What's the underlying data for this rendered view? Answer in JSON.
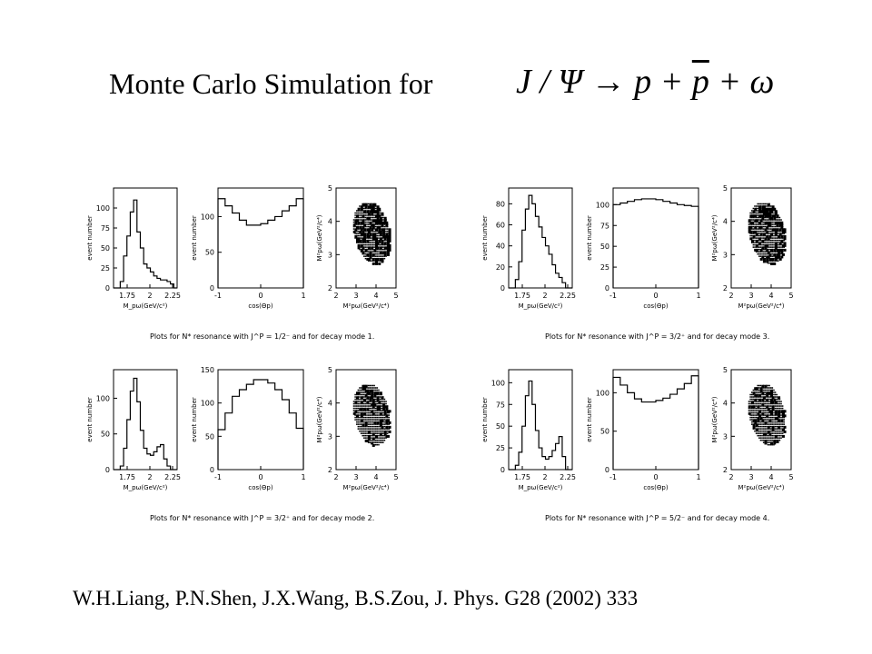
{
  "title": "Monte Carlo Simulation for",
  "formula": {
    "lhs": "J / Ψ",
    "arrow": "→",
    "rhs1": "p",
    "plus1": " + ",
    "rhs2": "p",
    "plus2": " + ",
    "rhs3": "ω"
  },
  "citation": "W.H.Liang, P.N.Shen, J.X.Wang, B.S.Zou, J. Phys. G28  (2002) 333",
  "figures": [
    {
      "id": "mode1",
      "caption": "Plots for N* resonance with J^P = 1/2⁻ and for decay mode 1.",
      "panels": [
        {
          "type": "histogram",
          "ylabel": "event number",
          "xlabel": "M_pω(GeV/c²)",
          "xticks": [
            "1.75",
            "2",
            "2.25"
          ],
          "xrange": [
            1.6,
            2.3
          ],
          "yticks": [
            "0",
            "25",
            "50",
            "75",
            "100"
          ],
          "yrange": [
            0,
            125
          ],
          "values": [
            0,
            0,
            8,
            40,
            65,
            95,
            110,
            70,
            50,
            30,
            25,
            20,
            15,
            12,
            10,
            10,
            8,
            5,
            0
          ]
        },
        {
          "type": "histogram",
          "ylabel": "event number",
          "xlabel": "cos(Θp)",
          "xticks": [
            "-1",
            "0",
            "1"
          ],
          "xrange": [
            -1,
            1
          ],
          "yticks": [
            "0",
            "50",
            "100"
          ],
          "yrange": [
            0,
            140
          ],
          "values": [
            125,
            115,
            105,
            95,
            88,
            88,
            90,
            95,
            100,
            108,
            115,
            125
          ]
        },
        {
          "type": "scatter",
          "ylabel": "M²pω(GeV²/c⁴)",
          "xlabel": "M²pω(GeV²/c⁴)",
          "xticks": [
            "2",
            "3",
            "4",
            "5"
          ],
          "yticks": [
            "2",
            "3",
            "4",
            "5"
          ],
          "pattern": "mode1"
        }
      ]
    },
    {
      "id": "mode3",
      "caption": "Plots for N* resonance with J^P = 3/2⁺ and for decay mode 3.",
      "panels": [
        {
          "type": "histogram",
          "ylabel": "event number",
          "xlabel": "M_pω(GeV/c²)",
          "xticks": [
            "1.75",
            "2",
            "2.25"
          ],
          "xrange": [
            1.6,
            2.3
          ],
          "yticks": [
            "0",
            "20",
            "40",
            "60",
            "80"
          ],
          "yrange": [
            0,
            95
          ],
          "values": [
            0,
            0,
            8,
            25,
            55,
            75,
            88,
            80,
            68,
            58,
            48,
            40,
            32,
            22,
            14,
            10,
            5,
            0,
            0
          ]
        },
        {
          "type": "histogram",
          "ylabel": "event number",
          "xlabel": "cos(Θp)",
          "xticks": [
            "-1",
            "0",
            "1"
          ],
          "xrange": [
            -1,
            1
          ],
          "yticks": [
            "0",
            "25",
            "50",
            "75",
            "100"
          ],
          "yrange": [
            0,
            120
          ],
          "values": [
            100,
            102,
            104,
            106,
            107,
            107,
            106,
            104,
            102,
            100,
            99,
            98
          ]
        },
        {
          "type": "scatter",
          "ylabel": "M²pω(GeV²/c⁴)",
          "xlabel": "M²pω(GeV²/c⁴)",
          "xticks": [
            "2",
            "3",
            "4",
            "5"
          ],
          "yticks": [
            "2",
            "3",
            "4",
            "5"
          ],
          "pattern": "mode3"
        }
      ]
    },
    {
      "id": "mode2",
      "caption": "Plots for N* resonance with J^P = 3/2⁺ and for decay mode 2.",
      "panels": [
        {
          "type": "histogram",
          "ylabel": "event number",
          "xlabel": "M_pω(GeV/c²)",
          "xticks": [
            "1.75",
            "2",
            "2.25"
          ],
          "xrange": [
            1.6,
            2.3
          ],
          "yticks": [
            "0",
            "50",
            "100"
          ],
          "yrange": [
            0,
            140
          ],
          "values": [
            0,
            0,
            5,
            30,
            70,
            110,
            128,
            95,
            55,
            30,
            22,
            20,
            25,
            32,
            35,
            15,
            5,
            0,
            0
          ]
        },
        {
          "type": "histogram",
          "ylabel": "event number",
          "xlabel": "cos(Θp)",
          "xticks": [
            "-1",
            "0",
            "1"
          ],
          "xrange": [
            -1,
            1
          ],
          "yticks": [
            "0",
            "50",
            "100",
            "150"
          ],
          "yrange": [
            0,
            150
          ],
          "values": [
            60,
            85,
            110,
            120,
            128,
            135,
            135,
            130,
            120,
            105,
            85,
            62
          ]
        },
        {
          "type": "scatter",
          "ylabel": "M²pω(GeV²/c⁴)",
          "xlabel": "M²pω(GeV²/c⁴)",
          "xticks": [
            "2",
            "3",
            "4",
            "5"
          ],
          "yticks": [
            "2",
            "3",
            "4",
            "5"
          ],
          "pattern": "mode2"
        }
      ]
    },
    {
      "id": "mode4",
      "caption": "Plots for N* resonance with J^P = 5/2⁻ and for decay mode 4.",
      "panels": [
        {
          "type": "histogram",
          "ylabel": "event number",
          "xlabel": "M_pω(GeV/c²)",
          "xticks": [
            "1.75",
            "2",
            "2.25"
          ],
          "xrange": [
            1.6,
            2.3
          ],
          "yticks": [
            "0",
            "25",
            "50",
            "75",
            "100"
          ],
          "yrange": [
            0,
            115
          ],
          "values": [
            0,
            0,
            5,
            20,
            50,
            85,
            102,
            75,
            45,
            25,
            15,
            12,
            15,
            22,
            30,
            38,
            15,
            0,
            0
          ]
        },
        {
          "type": "histogram",
          "ylabel": "event number",
          "xlabel": "cos(Θp)",
          "xticks": [
            "-1",
            "0",
            "1"
          ],
          "xrange": [
            -1,
            1
          ],
          "yticks": [
            "0",
            "50",
            "100"
          ],
          "yrange": [
            0,
            130
          ],
          "values": [
            120,
            110,
            100,
            92,
            88,
            88,
            90,
            93,
            98,
            105,
            112,
            122
          ]
        },
        {
          "type": "scatter",
          "ylabel": "M²pω(GeV²/c⁴)",
          "xlabel": "M²pω(GeV²/c⁴)",
          "xticks": [
            "2",
            "3",
            "4",
            "5"
          ],
          "yticks": [
            "2",
            "3",
            "4",
            "5"
          ],
          "pattern": "mode4"
        }
      ]
    }
  ]
}
